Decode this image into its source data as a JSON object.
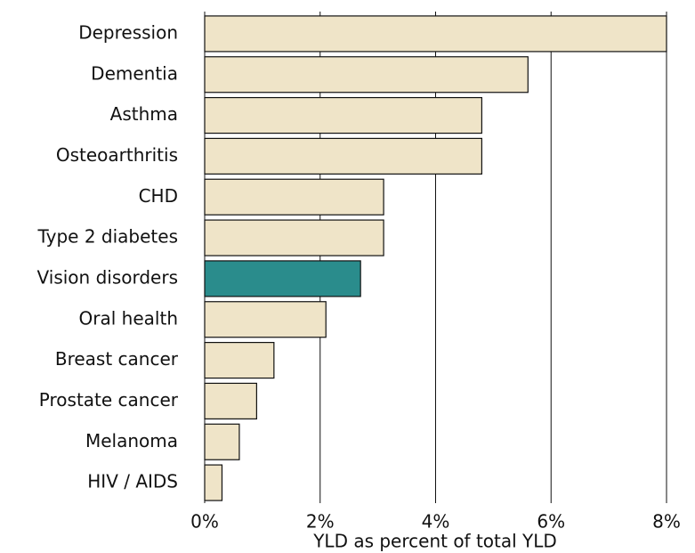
{
  "chart_data": {
    "type": "bar",
    "orientation": "horizontal",
    "xlabel": "YLD as percent of total YLD",
    "categories": [
      "Depression",
      "Dementia",
      "Asthma",
      "Osteoarthritis",
      "CHD",
      "Type 2 diabetes",
      "Vision disorders",
      "Oral health",
      "Breast cancer",
      "Prostate cancer",
      "Melanoma",
      "HIV / AIDS"
    ],
    "values": [
      8.0,
      5.6,
      4.8,
      4.8,
      3.1,
      3.1,
      2.7,
      2.1,
      1.2,
      0.9,
      0.6,
      0.3
    ],
    "colors": [
      "#efe4c8",
      "#efe4c8",
      "#efe4c8",
      "#efe4c8",
      "#efe4c8",
      "#efe4c8",
      "#2a8c8c",
      "#efe4c8",
      "#efe4c8",
      "#efe4c8",
      "#efe4c8",
      "#efe4c8"
    ],
    "xlim": [
      0,
      8
    ],
    "xticks": [
      {
        "value": 0,
        "label": "0%"
      },
      {
        "value": 2,
        "label": "2%"
      },
      {
        "value": 4,
        "label": "4%"
      },
      {
        "value": 6,
        "label": "6%"
      },
      {
        "value": 8,
        "label": "8%"
      }
    ],
    "grid": true
  }
}
